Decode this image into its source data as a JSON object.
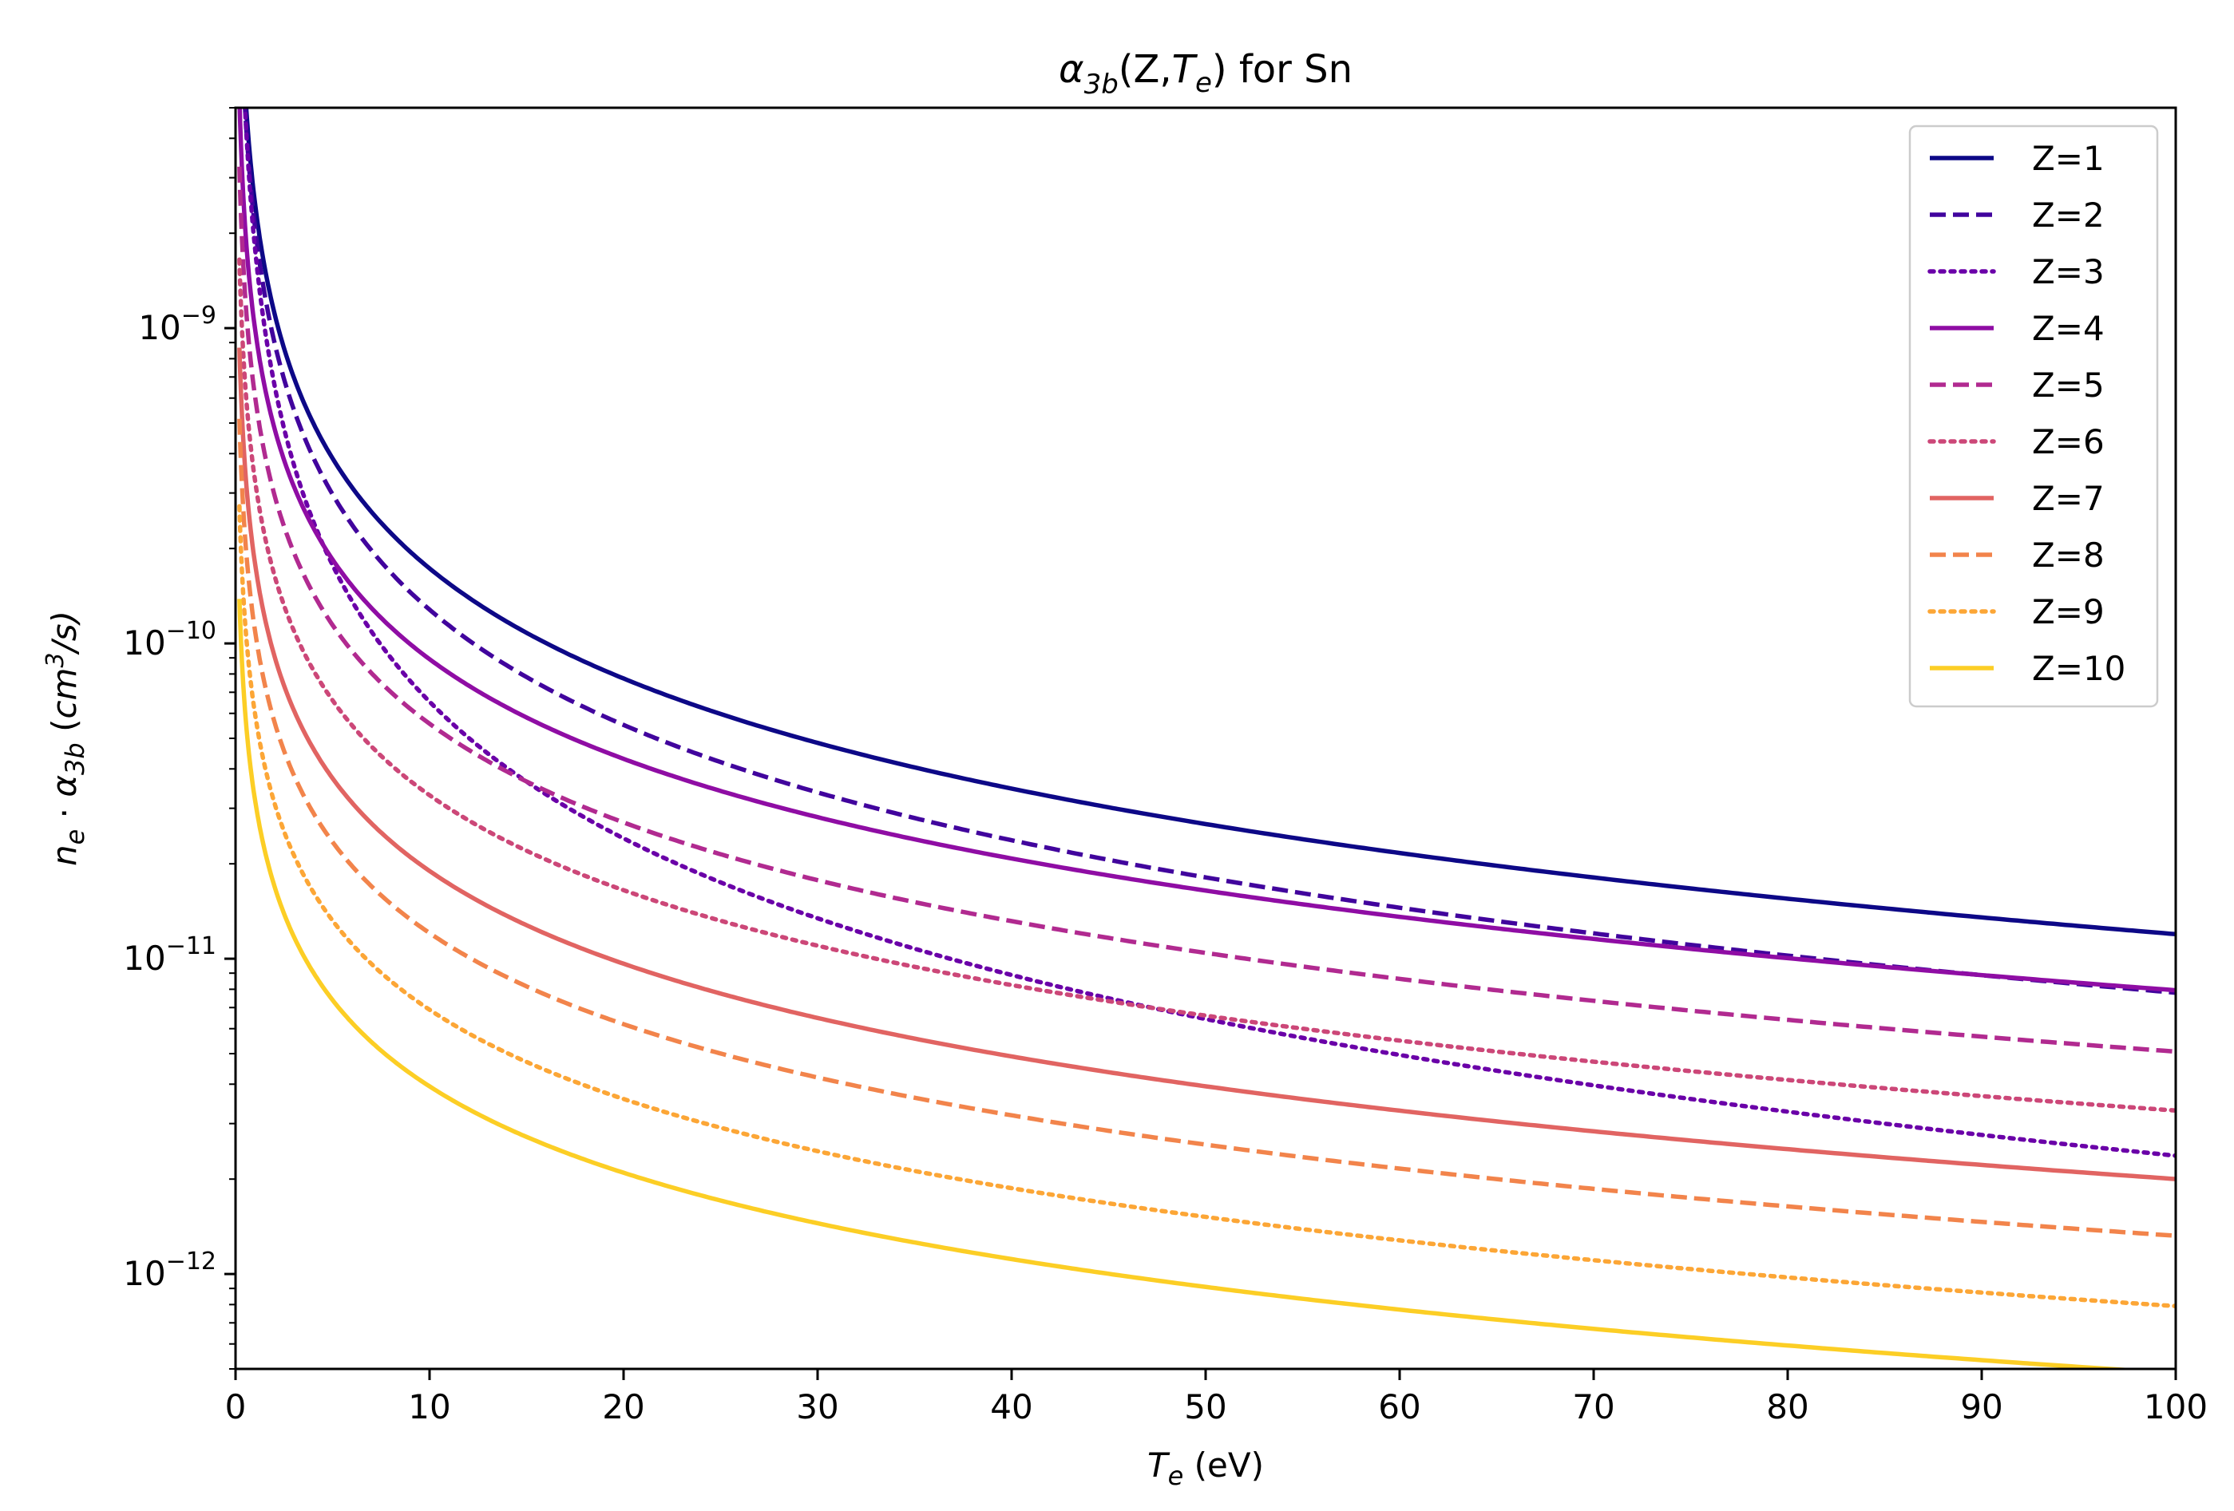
{
  "chart_data": {
    "type": "line",
    "title": {
      "alpha": "α",
      "sub": "3b",
      "open": "(Z,",
      "te": "T",
      "te_sub": "e",
      "close": ") for Sn"
    },
    "xlabel": {
      "sym": "T",
      "sub": "e",
      "rest": " (eV)"
    },
    "ylabel": {
      "n": "n",
      "n_sub": "e",
      "dot": " · ",
      "alpha": "α",
      "alpha_sub": "3b",
      "paren_open": " (",
      "cm": "cm",
      "cm_sup": "3",
      "per_s": "/s)"
    },
    "xlim": [
      0,
      100
    ],
    "ylim": [
      5e-13,
      5e-09
    ],
    "yscale": "log",
    "xticks": [
      0,
      10,
      20,
      30,
      40,
      50,
      60,
      70,
      80,
      90,
      100
    ],
    "xtick_labels": [
      "0",
      "10",
      "20",
      "30",
      "40",
      "50",
      "60",
      "70",
      "80",
      "90",
      "100"
    ],
    "yticks": [
      {
        "base": "10",
        "exp": "−9",
        "value": 1e-09
      },
      {
        "base": "10",
        "exp": "−10",
        "value": 1e-10
      },
      {
        "base": "10",
        "exp": "−11",
        "value": 1e-11
      },
      {
        "base": "10",
        "exp": "−12",
        "value": 1e-12
      }
    ],
    "grid": false,
    "legend_position": "top-right",
    "model": "y = A * T^(-p)",
    "series": [
      {
        "name": "Z=1",
        "A": 2.5e-09,
        "p": 1.16,
        "color": "#0d0887",
        "style": "solid"
      },
      {
        "name": "Z=2",
        "A": 2.1e-09,
        "p": 1.215,
        "color": "#41049d",
        "style": "dashed"
      },
      {
        "name": "Z=3",
        "A": 1.8e-09,
        "p": 1.44,
        "color": "#6a00a8",
        "style": "dotted"
      },
      {
        "name": "Z=4",
        "A": 1e-09,
        "p": 1.05,
        "color": "#8f0da4",
        "style": "solid"
      },
      {
        "name": "Z=5",
        "A": 6.1e-10,
        "p": 1.04,
        "color": "#b12a90",
        "style": "dashed"
      },
      {
        "name": "Z=6",
        "A": 3.3e-10,
        "p": 1.0,
        "color": "#cc4778",
        "style": "dotted"
      },
      {
        "name": "Z=7",
        "A": 1.8e-10,
        "p": 0.977,
        "color": "#e16462",
        "style": "solid"
      },
      {
        "name": "Z=8",
        "A": 1.1e-10,
        "p": 0.96,
        "color": "#f2844b",
        "style": "dashed"
      },
      {
        "name": "Z=9",
        "A": 6e-11,
        "p": 0.94,
        "color": "#fca636",
        "style": "dotted"
      },
      {
        "name": "Z=10",
        "A": 3.2e-11,
        "p": 0.91,
        "color": "#fcce25",
        "style": "solid"
      }
    ]
  }
}
